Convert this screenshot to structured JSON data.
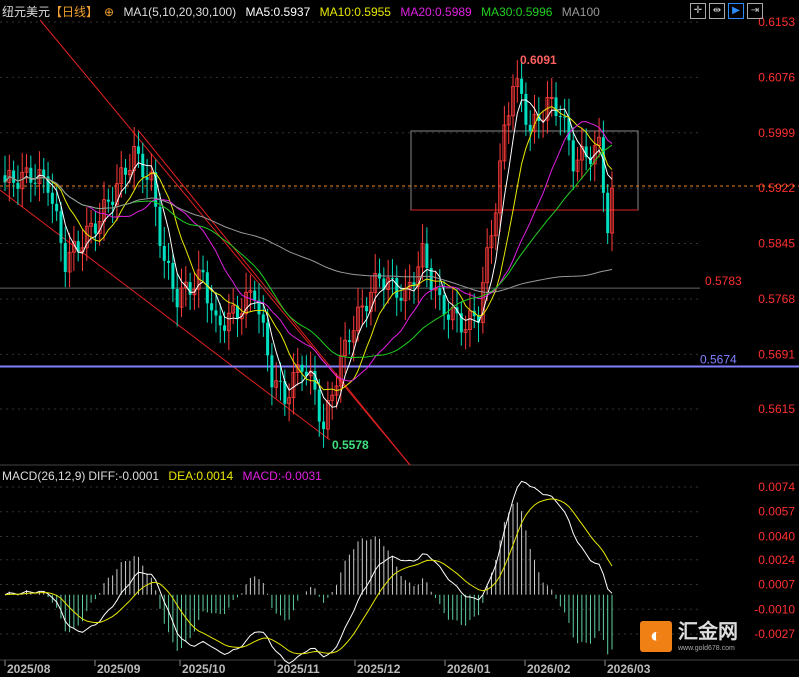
{
  "header": {
    "symbol": "纽元美元",
    "period": "【日线】",
    "ma_title": "MA1(5,10,20,30,100)",
    "ma5": "MA5:0.5937",
    "ma10": "MA10:0.5955",
    "ma20": "MA20:0.5989",
    "ma30": "MA30:0.5996",
    "ma100": "MA100"
  },
  "macd_legend": {
    "title": "MACD(26,12,9)",
    "diff": "DIFF:-0.0001",
    "dea": "DEA:0.0014",
    "macd": "MACD:-0.0031"
  },
  "toolbar": [
    "crosshair-icon",
    "fit-icon",
    "select-icon",
    "export-icon"
  ],
  "logo": {
    "name": "汇金网",
    "url": "www.gold678.com"
  },
  "colors": {
    "up": "#ff3b3b",
    "down": "#00e0c0",
    "ma5": "#ffffff",
    "ma10": "#e8e800",
    "ma20": "#e020e0",
    "ma30": "#20d020",
    "ma100": "#999999",
    "axis": "#ff3030"
  },
  "chart_data": {
    "type": "candlestick",
    "price_axis": {
      "ticks": [
        "0.6153",
        "0.6076",
        "0.5999",
        "0.5922",
        "0.5845",
        "0.5768",
        "0.5691",
        "0.5615"
      ],
      "range": [
        0.5615,
        0.6153
      ]
    },
    "date_ticks": [
      "2025/08",
      "2025/09",
      "2025/10",
      "2025/11",
      "2025/12",
      "2026/01",
      "2026/02",
      "2026/03"
    ],
    "close_path": [
      [
        0,
        0.593
      ],
      [
        6,
        0.594
      ],
      [
        10,
        0.593
      ],
      [
        14,
        0.582
      ],
      [
        22,
        0.588
      ],
      [
        30,
        0.597
      ],
      [
        34,
        0.593
      ],
      [
        37,
        0.582
      ],
      [
        40,
        0.577
      ],
      [
        46,
        0.58
      ],
      [
        49,
        0.573
      ],
      [
        54,
        0.575
      ],
      [
        58,
        0.578
      ],
      [
        62,
        0.566
      ],
      [
        65,
        0.563
      ],
      [
        69,
        0.568
      ],
      [
        72,
        0.564
      ],
      [
        74,
        0.5585
      ],
      [
        76,
        0.564
      ],
      [
        80,
        0.572
      ],
      [
        87,
        0.58
      ],
      [
        93,
        0.577
      ],
      [
        97,
        0.583
      ],
      [
        101,
        0.576
      ],
      [
        107,
        0.573
      ],
      [
        110,
        0.575
      ],
      [
        114,
        0.59
      ],
      [
        116,
        0.6
      ],
      [
        118,
        0.607
      ],
      [
        120,
        0.605
      ],
      [
        122,
        0.6
      ],
      [
        126,
        0.604
      ],
      [
        129,
        0.603
      ],
      [
        132,
        0.596
      ],
      [
        136,
        0.597
      ],
      [
        138,
        0.598
      ],
      [
        140,
        0.587
      ],
      [
        141,
        0.591
      ]
    ],
    "annotations": {
      "high": "0.6091",
      "low": "0.5578",
      "level1": "0.5783",
      "level2": "0.5674"
    },
    "macd_axis": {
      "ticks": [
        "0.0074",
        "0.0057",
        "0.0040",
        "0.0024",
        "0.0007",
        "-0.0010",
        "-0.0027"
      ],
      "range": [
        -0.0027,
        0.0074
      ]
    }
  }
}
